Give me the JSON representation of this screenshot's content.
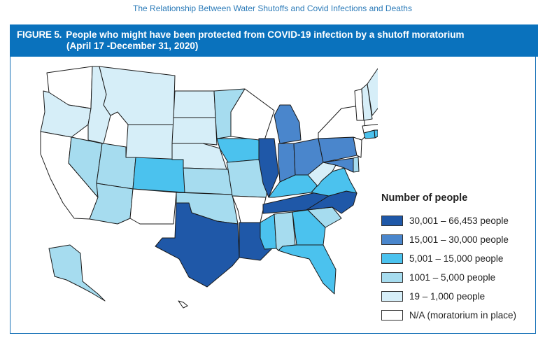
{
  "page_header": "The Relationship Between Water Shutoffs and Covid Infections and Deaths",
  "figure": {
    "label": "FIGURE 5.",
    "title": "People who might have been protected from COVID-19 infection by a shutoff moratorium",
    "subtitle": "(April 17 -December 31, 2020)"
  },
  "legend": {
    "title": "Number of people",
    "items": [
      {
        "key": "b5",
        "label": "30,001 – 66,453 people",
        "color": "#1f58a8"
      },
      {
        "key": "b4",
        "label": "15,001 – 30,000 people",
        "color": "#4a86cc"
      },
      {
        "key": "b3",
        "label": "5,001 – 15,000 people",
        "color": "#4bc2ee"
      },
      {
        "key": "b2",
        "label": "1001 – 5,000 people",
        "color": "#a6dcef"
      },
      {
        "key": "b1",
        "label": "19 – 1,000 people",
        "color": "#d6eef8"
      },
      {
        "key": "na",
        "label": "N/A (moratorium in place)",
        "color": "#ffffff"
      }
    ]
  },
  "chart_data": {
    "type": "heatmap",
    "title": "People who might have been protected from COVID-19 infection by a shutoff moratorium (April 17 -December 31, 2020)",
    "legend_title": "Number of people",
    "legend_position": "bottom-right",
    "bins": {
      "b5": "30,001 – 66,453 people",
      "b4": "15,001 – 30,000 people",
      "b3": "5,001 – 15,000 people",
      "b2": "1001 – 5,000 people",
      "b1": "19 – 1,000 people",
      "na": "N/A (moratorium in place)"
    },
    "states": {
      "WA": "na",
      "OR": "b1",
      "CA": "na",
      "NV": "b2",
      "ID": "b1",
      "MT": "b1",
      "WY": "b1",
      "UT": "b2",
      "AZ": "b2",
      "CO": "b3",
      "NM": "na",
      "ND": "b1",
      "SD": "b1",
      "NE": "b1",
      "KS": "b2",
      "OK": "b2",
      "TX": "b5",
      "MN": "b2",
      "IA": "b3",
      "MO": "b2",
      "AR": "na",
      "LA": "b5",
      "WI": "na",
      "IL": "b5",
      "MI": "b4",
      "IN": "b4",
      "OH": "b4",
      "KY": "b3",
      "TN": "b5",
      "MS": "b3",
      "AL": "b2",
      "GA": "b3",
      "FL": "b3",
      "SC": "b2",
      "NC": "b5",
      "VA": "b3",
      "WV": "b1",
      "PA": "b4",
      "MD": "b4",
      "DE": "b2",
      "NJ": "na",
      "NY": "na",
      "CT": "b3",
      "RI": "b3",
      "MA": "na",
      "VT": "na",
      "NH": "b1",
      "ME": "b1",
      "AK": "b2",
      "HI": "na"
    }
  }
}
